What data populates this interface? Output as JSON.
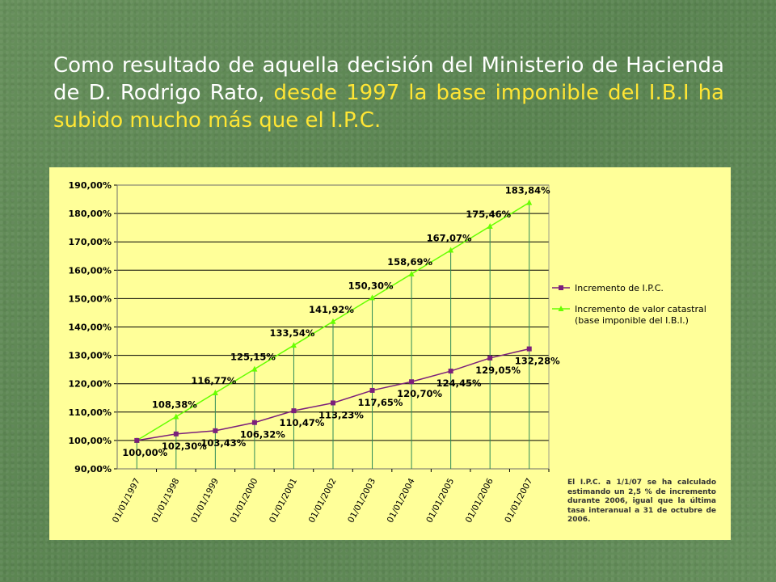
{
  "headline": {
    "part1": "Como resultado de aquella decisión del Ministerio de Hacienda de D. Rodrigo Rato, ",
    "part2": "desde 1997 la base imponible del I.B.I ha subido mucho más que el I.P.C."
  },
  "footnote": "El I.P.C. a 1/1/07 se ha calculado estimando un 2,5 % de incremento durante 2006, igual que la última tasa interanual a 31 de octubre de 2006.",
  "colors": {
    "background": "#5f8a55",
    "headline_highlight": "#ffe534",
    "panel": "#ffff99",
    "ipc_series": "#7b1f7b",
    "catastral_series": "#66ff00",
    "drop_lines": "#2e8b57"
  },
  "chart_data": {
    "type": "line",
    "x": [
      "01/01/1997",
      "01/01/1998",
      "01/01/1999",
      "01/01/2000",
      "01/01/2001",
      "01/01/2002",
      "01/01/2003",
      "01/01/2004",
      "01/01/2005",
      "01/01/2006",
      "01/01/2007"
    ],
    "ylim": [
      90,
      190
    ],
    "yticks": [
      "90,00%",
      "100,00%",
      "110,00%",
      "120,00%",
      "130,00%",
      "140,00%",
      "150,00%",
      "160,00%",
      "170,00%",
      "180,00%",
      "190,00%"
    ],
    "grid": true,
    "legend_position": "right",
    "series": [
      {
        "name": "Incremento de I.P.C.",
        "marker": "square",
        "values": [
          100.0,
          102.3,
          103.43,
          106.32,
          110.47,
          113.23,
          117.65,
          120.7,
          124.45,
          129.05,
          132.28
        ],
        "labels": [
          "100,00%",
          "102,30%",
          "103,43%",
          "106,32%",
          "110,47%",
          "113,23%",
          "117,65%",
          "120,70%",
          "124,45%",
          "129,05%",
          "132,28%"
        ]
      },
      {
        "name": "Incremento de valor catastral (base imponible del I.B.I.)",
        "legend_lines": [
          "Incremento de valor catastral",
          "(base imponible del I.B.I.)"
        ],
        "marker": "triangle",
        "values": [
          100.0,
          108.38,
          116.77,
          125.15,
          133.54,
          141.92,
          150.3,
          158.69,
          167.07,
          175.46,
          183.84
        ],
        "labels": [
          "",
          "108,38%",
          "116,77%",
          "125,15%",
          "133,54%",
          "141,92%",
          "150,30%",
          "158,69%",
          "167,07%",
          "175,46%",
          "183,84%"
        ]
      }
    ]
  }
}
